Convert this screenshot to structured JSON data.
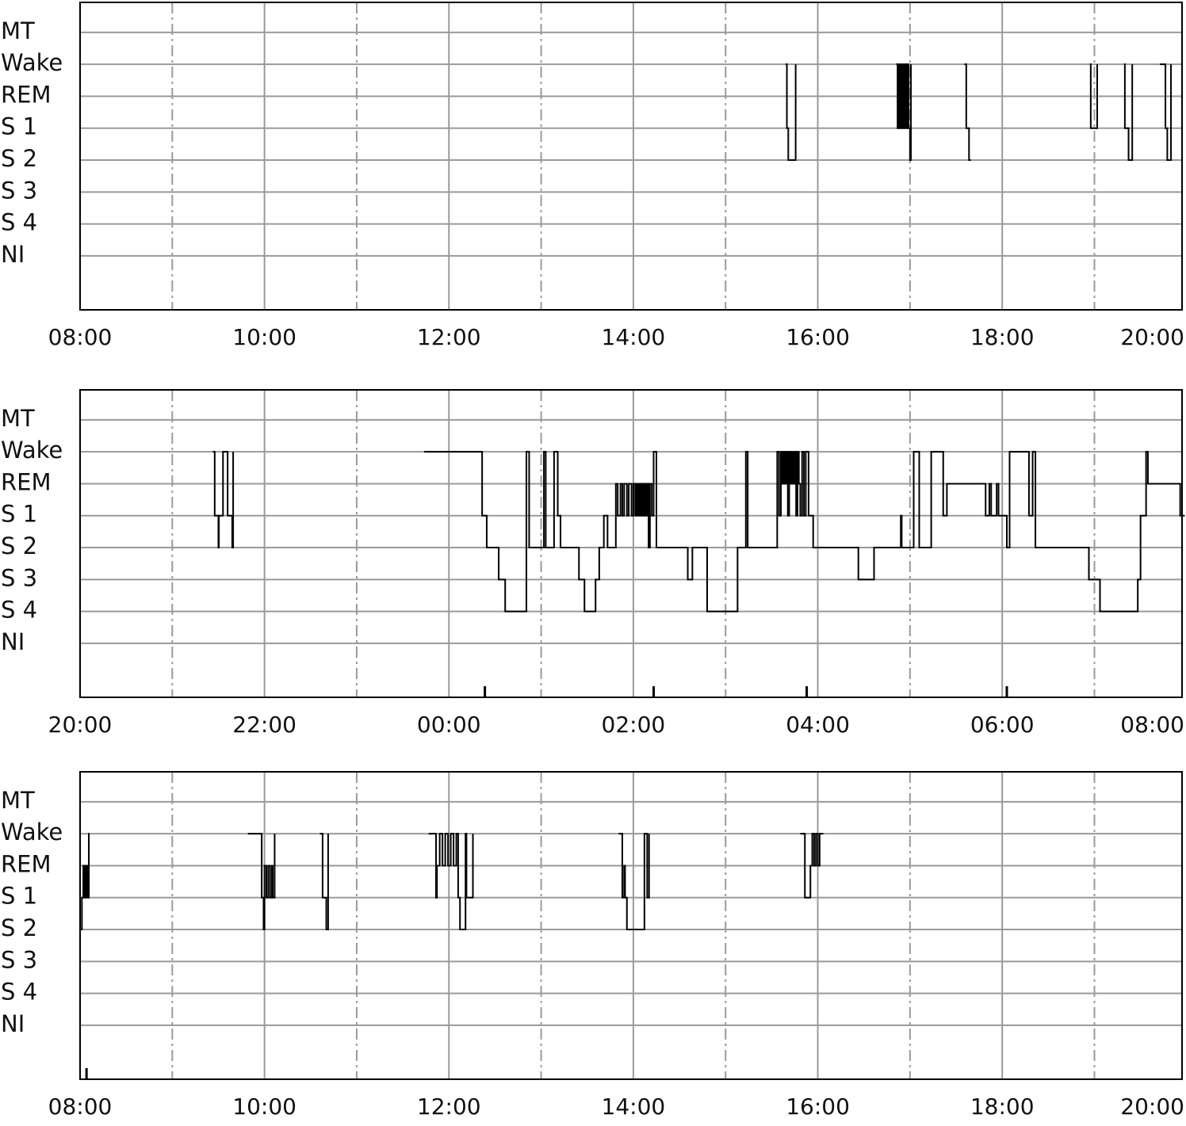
{
  "chart_data": [
    {
      "type": "line",
      "step": "post",
      "color": "#000000",
      "grid": true,
      "xlim": [
        8,
        19.95
      ],
      "ylim": [
        -1.69,
        7.94
      ],
      "xticks": [
        {
          "value": 8,
          "label": "08:00"
        },
        {
          "value": 10,
          "label": "10:00"
        },
        {
          "value": 12,
          "label": "12:00"
        },
        {
          "value": 14,
          "label": "14:00"
        },
        {
          "value": 16,
          "label": "16:00"
        },
        {
          "value": 18,
          "label": "18:00"
        },
        {
          "value": 20,
          "label": "20:00"
        }
      ],
      "xminorticks": [
        9,
        11,
        13,
        15,
        17,
        19
      ],
      "yticks": [
        {
          "value": 7,
          "label": "MT"
        },
        {
          "value": 6,
          "label": "Wake"
        },
        {
          "value": 5,
          "label": "REM"
        },
        {
          "value": 4,
          "label": "S 1"
        },
        {
          "value": 3,
          "label": "S 2"
        },
        {
          "value": 2,
          "label": "S 3"
        },
        {
          "value": 1,
          "label": "S 4"
        },
        {
          "value": 0,
          "label": "NI"
        }
      ],
      "x": [
        15.65,
        15.665,
        15.68,
        15.76,
        16.3,
        16.85,
        16.865,
        16.88,
        16.895,
        16.91,
        16.925,
        16.94,
        16.955,
        16.97,
        16.985,
        17.0,
        17.01,
        17.3,
        17.59,
        17.61,
        17.64,
        17.66,
        18.3,
        18.95,
        18.96,
        19.03,
        19.2,
        19.32,
        19.33,
        19.37,
        19.41,
        19.55,
        19.71,
        19.77,
        19.79,
        19.83
      ],
      "values": [
        6,
        4,
        3,
        6,
        null,
        6,
        4,
        6,
        4,
        6,
        4,
        6,
        4,
        6,
        4,
        3,
        6,
        null,
        6,
        4,
        3,
        3,
        null,
        6,
        4,
        6,
        null,
        6,
        4,
        3,
        6,
        null,
        6,
        4,
        3,
        6
      ],
      "events": []
    },
    {
      "type": "line",
      "step": "post",
      "color": "#000000",
      "grid": true,
      "xlim": [
        20,
        31.95
      ],
      "ylim": [
        -1.69,
        7.94
      ],
      "xticks": [
        {
          "value": 20,
          "label": "20:00"
        },
        {
          "value": 22,
          "label": "22:00"
        },
        {
          "value": 24,
          "label": "00:00"
        },
        {
          "value": 26,
          "label": "02:00"
        },
        {
          "value": 28,
          "label": "04:00"
        },
        {
          "value": 30,
          "label": "06:00"
        },
        {
          "value": 32,
          "label": "08:00"
        }
      ],
      "xminorticks": [
        21,
        23,
        25,
        27,
        29,
        31
      ],
      "yticks": [
        {
          "value": 7,
          "label": "MT"
        },
        {
          "value": 6,
          "label": "Wake"
        },
        {
          "value": 5,
          "label": "REM"
        },
        {
          "value": 4,
          "label": "S 1"
        },
        {
          "value": 3,
          "label": "S 2"
        },
        {
          "value": 2,
          "label": "S 3"
        },
        {
          "value": 1,
          "label": "S 4"
        },
        {
          "value": 0,
          "label": "NI"
        }
      ],
      "x": [
        21.44,
        21.46,
        21.5,
        21.505,
        21.55,
        21.6,
        21.65,
        21.66,
        22.5,
        23.73,
        24.36,
        24.41,
        24.54,
        24.61,
        24.84,
        24.87,
        25.03,
        25.05,
        25.14,
        25.18,
        25.21,
        25.41,
        25.47,
        25.59,
        25.63,
        25.68,
        25.72,
        25.81,
        25.83,
        25.86,
        25.88,
        25.9,
        25.93,
        25.95,
        25.98,
        26.0,
        26.02,
        26.03,
        26.045,
        26.06,
        26.075,
        26.09,
        26.105,
        26.12,
        26.135,
        26.15,
        26.165,
        26.18,
        26.2,
        26.22,
        26.25,
        26.59,
        26.64,
        26.8,
        27.13,
        27.22,
        27.24,
        27.56,
        27.58,
        27.6,
        27.615,
        27.63,
        27.645,
        27.66,
        27.675,
        27.69,
        27.705,
        27.72,
        27.735,
        27.75,
        27.765,
        27.78,
        27.795,
        27.81,
        27.83,
        27.85,
        27.87,
        27.9,
        27.95,
        28.44,
        28.61,
        28.9,
        28.91,
        29.04,
        29.1,
        29.23,
        29.36,
        29.4,
        29.82,
        29.86,
        29.88,
        29.94,
        29.96,
        30.05,
        30.08,
        30.14,
        30.29,
        30.33,
        30.36,
        30.94,
        31.06,
        31.47,
        31.5,
        31.56,
        31.58,
        31.93,
        31.98
      ],
      "values": [
        6,
        4,
        3,
        4,
        6,
        4,
        3,
        6,
        null,
        6,
        4,
        3,
        2,
        1,
        6,
        3,
        6,
        3,
        6,
        4,
        3,
        2,
        1,
        2,
        3,
        4,
        3,
        5,
        4,
        5,
        4,
        5,
        4,
        5,
        4,
        5,
        4,
        5,
        4,
        5,
        4,
        5,
        4,
        5,
        4,
        5,
        3,
        5,
        4,
        6,
        3,
        2,
        3,
        1,
        3,
        6,
        3,
        6,
        4,
        6,
        5,
        6,
        5,
        6,
        4,
        6,
        5,
        6,
        5,
        6,
        4,
        6,
        5,
        4,
        6,
        4,
        6,
        4,
        3,
        2,
        3,
        4,
        3,
        6,
        3,
        6,
        4,
        5,
        4,
        5,
        4,
        5,
        4,
        3,
        6,
        6,
        4,
        6,
        3,
        2,
        1,
        2,
        4,
        6,
        5,
        4,
        4
      ],
      "events": [
        24.39,
        26.22,
        27.88,
        30.05
      ]
    },
    {
      "type": "line",
      "step": "post",
      "color": "#000000",
      "grid": true,
      "xlim": [
        8,
        19.95
      ],
      "ylim": [
        -1.69,
        7.94
      ],
      "xticks": [
        {
          "value": 8,
          "label": "08:00"
        },
        {
          "value": 10,
          "label": "10:00"
        },
        {
          "value": 12,
          "label": "12:00"
        },
        {
          "value": 14,
          "label": "14:00"
        },
        {
          "value": 16,
          "label": "16:00"
        },
        {
          "value": 18,
          "label": "18:00"
        },
        {
          "value": 20,
          "label": "20:00"
        }
      ],
      "xminorticks": [
        9,
        11,
        13,
        15,
        17,
        19
      ],
      "yticks": [
        {
          "value": 7,
          "label": "MT"
        },
        {
          "value": 6,
          "label": "Wake"
        },
        {
          "value": 5,
          "label": "REM"
        },
        {
          "value": 4,
          "label": "S 1"
        },
        {
          "value": 3,
          "label": "S 2"
        },
        {
          "value": 2,
          "label": "S 3"
        },
        {
          "value": 1,
          "label": "S 4"
        },
        {
          "value": 0,
          "label": "NI"
        }
      ],
      "x": [
        8.0,
        8.02,
        8.035,
        8.05,
        8.065,
        8.08,
        8.095,
        8.1,
        9.0,
        9.82,
        9.97,
        9.99,
        10.0,
        10.02,
        10.04,
        10.06,
        10.08,
        10.09,
        10.11,
        10.3,
        10.6,
        10.63,
        10.67,
        10.69,
        11.2,
        11.78,
        11.86,
        11.87,
        11.9,
        11.93,
        11.96,
        11.99,
        12.02,
        12.05,
        12.08,
        12.1,
        12.12,
        12.18,
        12.19,
        12.26,
        13.0,
        13.84,
        13.88,
        13.9,
        13.91,
        13.93,
        14.12,
        14.15,
        14.17,
        15.0,
        15.81,
        15.86,
        15.92,
        15.94,
        15.96,
        15.98,
        16.0,
        16.02,
        16.05,
        16.06
      ],
      "values": [
        3,
        4,
        5,
        4,
        5,
        4,
        6,
        6,
        null,
        6,
        4,
        3,
        5,
        4,
        5,
        4,
        5,
        4,
        6,
        null,
        6,
        4,
        3,
        6,
        null,
        6,
        4,
        5,
        6,
        5,
        6,
        5,
        6,
        5,
        6,
        4,
        3,
        6,
        4,
        6,
        null,
        6,
        4,
        5,
        4,
        3,
        6,
        4,
        6,
        null,
        6,
        4,
        5,
        6,
        5,
        6,
        5,
        6,
        6,
        6
      ],
      "events": [
        8.07
      ]
    }
  ]
}
